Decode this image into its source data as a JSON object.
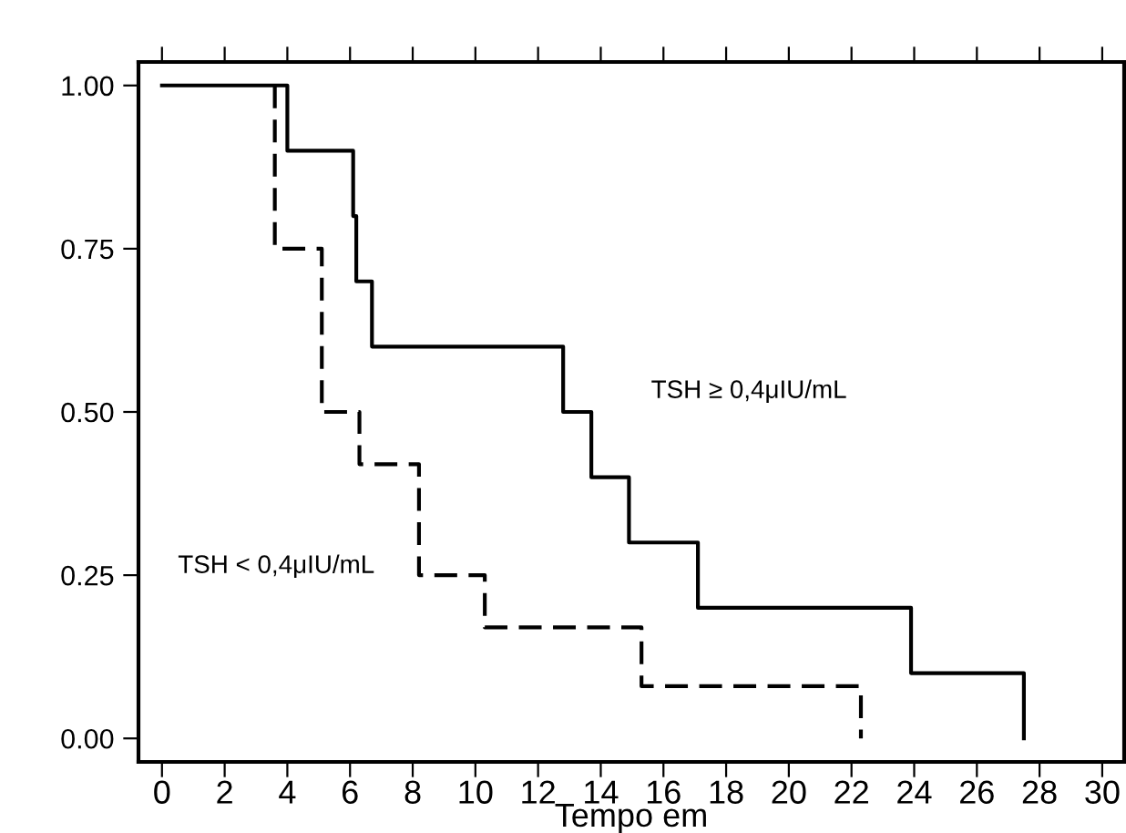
{
  "chart_data": {
    "type": "step",
    "xlabel": "Tempo em",
    "series": [
      {
        "name": "TSH ≥ 0,4μIU/mL",
        "color": "#000000",
        "line_style": "solid",
        "x": [
          0,
          4.0,
          6.1,
          6.2,
          6.7,
          12.8,
          13.7,
          14.9,
          17.1,
          23.9,
          27.5
        ],
        "values": [
          1.0,
          0.9,
          0.8,
          0.7,
          0.6,
          0.5,
          0.4,
          0.3,
          0.2,
          0.1,
          0.0
        ]
      },
      {
        "name": "TSH < 0,4μIU/mL",
        "color": "#000000",
        "line_style": "dashed",
        "x": [
          3.6,
          3.6,
          5.1,
          6.3,
          8.2,
          10.3,
          15.3,
          22.3
        ],
        "values": [
          1.0,
          0.75,
          0.5,
          0.42,
          0.25,
          0.17,
          0.08,
          0.0
        ]
      }
    ],
    "xlim": [
      -0.75,
      30.7
    ],
    "ylim": [
      -0.036,
      1.036
    ],
    "xticks": [
      0,
      2,
      4,
      6,
      8,
      10,
      12,
      14,
      16,
      18,
      20,
      22,
      24,
      26,
      28,
      30
    ],
    "yticks": [
      {
        "value": 0,
        "label": "0.00"
      },
      {
        "value": 0.25,
        "label": "0.25"
      },
      {
        "value": 0.5,
        "label": "0.50"
      },
      {
        "value": 0.75,
        "label": "0.75"
      },
      {
        "value": 1.0,
        "label": "1.00"
      }
    ],
    "grid": false,
    "legend": false
  }
}
